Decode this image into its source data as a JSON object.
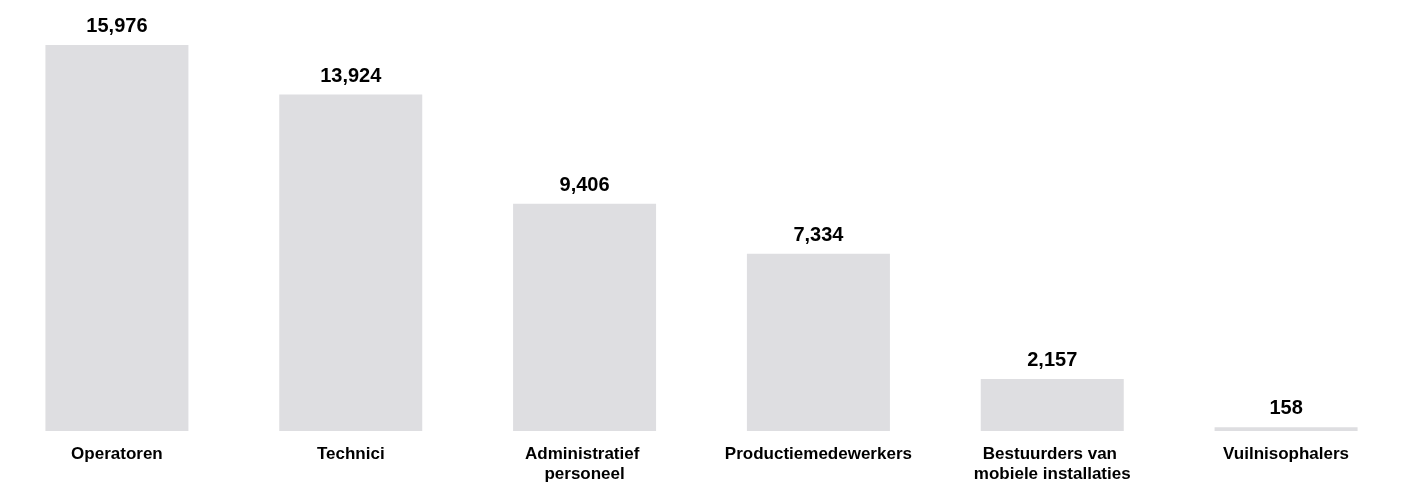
{
  "chart_data": {
    "type": "bar",
    "categories": [
      "Operatoren",
      "Technici",
      "Administratief personeel",
      "Productiemedewerkers",
      "Bestuurders van mobiele installaties",
      "Vuilnisophalers"
    ],
    "values": [
      15976,
      13924,
      9406,
      7334,
      2157,
      158
    ],
    "value_labels": [
      "15,976",
      "13,924",
      "9,406",
      "7,334",
      "2,157",
      "158"
    ],
    "color": "#dedee1"
  }
}
